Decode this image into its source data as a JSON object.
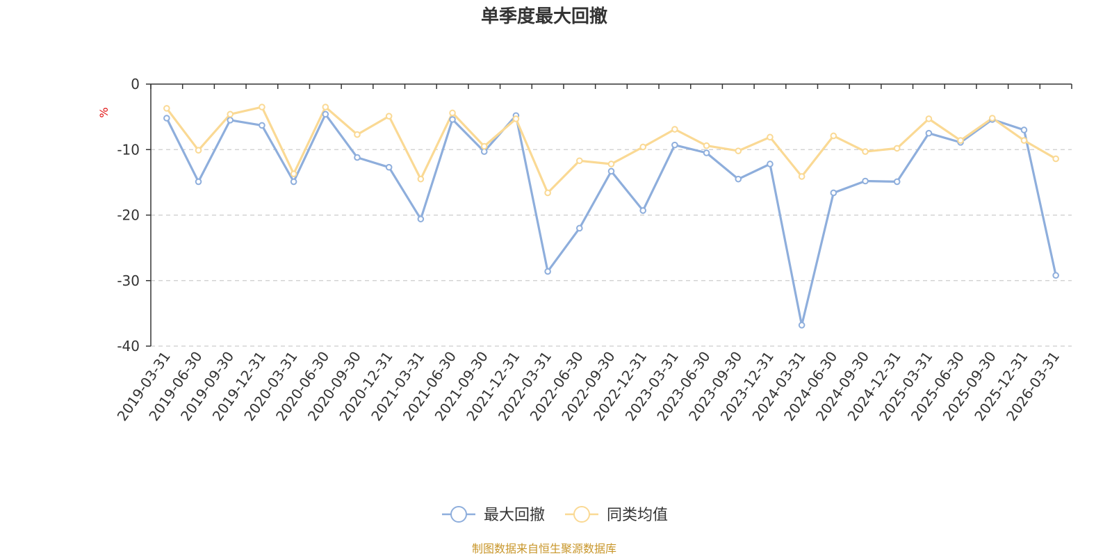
{
  "chart_data": {
    "type": "line",
    "title": "单季度最大回撤",
    "ylabel": "%",
    "ylim": [
      -40,
      0
    ],
    "yticks": [
      0,
      -10,
      -20,
      -30,
      -40
    ],
    "grid": true,
    "legend_position": "bottom-center",
    "categories": [
      "2019-03-31",
      "2019-06-30",
      "2019-09-30",
      "2019-12-31",
      "2020-03-31",
      "2020-06-30",
      "2020-09-30",
      "2020-12-31",
      "2021-03-31",
      "2021-06-30",
      "2021-09-30",
      "2021-12-31",
      "2022-03-31",
      "2022-06-30",
      "2022-09-30",
      "2022-12-31",
      "2023-03-31",
      "2023-06-30",
      "2023-09-30",
      "2023-12-31",
      "2024-03-31",
      "2024-06-30",
      "2024-09-30",
      "2024-12-31",
      "2025-03-31",
      "2025-06-30",
      "2025-09-30",
      "2025-12-31",
      "2026-03-31"
    ],
    "series": [
      {
        "name": "最大回撤",
        "color": "#8eaedc",
        "values": [
          -5.2,
          -14.9,
          -5.5,
          -6.3,
          -14.9,
          -4.6,
          -11.2,
          -12.7,
          -20.6,
          -5.4,
          -10.3,
          -4.8,
          -28.6,
          -22.0,
          -13.3,
          -19.3,
          -9.3,
          -10.5,
          -14.5,
          -12.2,
          -36.8,
          -16.6,
          -14.8,
          -14.9,
          -7.5,
          -8.9,
          -5.4,
          -7.0,
          -29.2
        ]
      },
      {
        "name": "同类均值",
        "color": "#fad994",
        "values": [
          -3.7,
          -10.1,
          -4.6,
          -3.5,
          -13.7,
          -3.5,
          -7.7,
          -4.9,
          -14.5,
          -4.4,
          -9.5,
          -5.3,
          -16.6,
          -11.7,
          -12.2,
          -9.6,
          -6.9,
          -9.4,
          -10.2,
          -8.1,
          -14.1,
          -7.9,
          -10.3,
          -9.8,
          -5.3,
          -8.6,
          -5.2,
          -8.6,
          -11.4
        ]
      }
    ]
  },
  "source": "制图数据来自恒生聚源数据库"
}
